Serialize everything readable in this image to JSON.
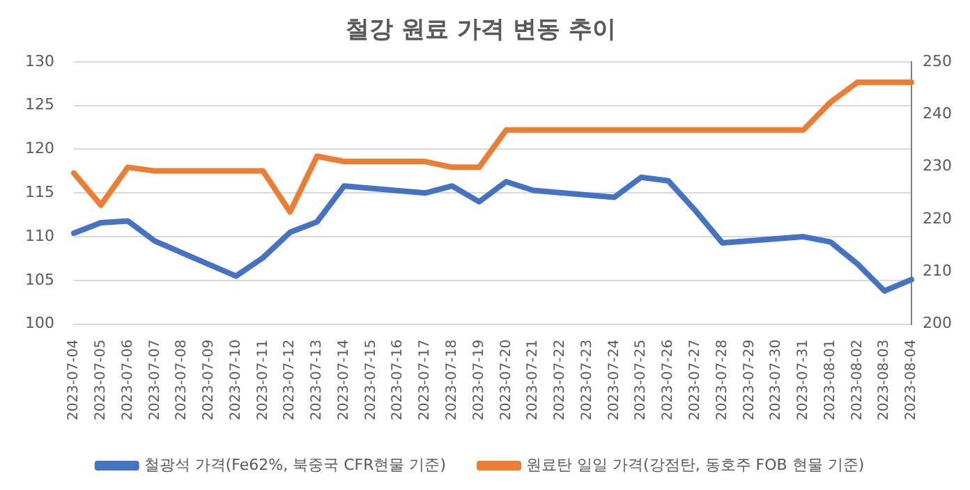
{
  "chart_data": {
    "type": "line",
    "title": "철강 원료 가격 변동 추이",
    "categories": [
      "2023-07-04",
      "2023-07-05",
      "2023-07-06",
      "2023-07-07",
      "2023-07-08",
      "2023-07-09",
      "2023-07-10",
      "2023-07-11",
      "2023-07-12",
      "2023-07-13",
      "2023-07-14",
      "2023-07-15",
      "2023-07-16",
      "2023-07-17",
      "2023-07-18",
      "2023-07-19",
      "2023-07-20",
      "2023-07-21",
      "2023-07-22",
      "2023-07-23",
      "2023-07-24",
      "2023-07-25",
      "2023-07-26",
      "2023-07-27",
      "2023-07-28",
      "2023-07-29",
      "2023-07-30",
      "2023-07-31",
      "2023-08-01",
      "2023-08-02",
      "2023-08-03",
      "2023-08-04"
    ],
    "series": [
      {
        "name": "철광석 가격(Fe62%, 북중국 CFR현물 기준)",
        "color": "#4472c4",
        "values": [
          110.4,
          111.6,
          111.8,
          109.5,
          null,
          null,
          105.5,
          107.6,
          110.5,
          111.7,
          115.8,
          null,
          null,
          115.0,
          115.8,
          114.0,
          116.3,
          115.3,
          null,
          null,
          114.5,
          116.8,
          116.4,
          113.0,
          109.3,
          null,
          null,
          110.0,
          109.4,
          106.9,
          103.8,
          105.1
        ]
      },
      {
        "name": "원료탄 일일 가격(강점탄, 동호주 FOB 현물 기준)",
        "color": "#ed7d31",
        "axis": "y2",
        "values": [
          228.8,
          222.7,
          229.9,
          229.2,
          null,
          null,
          229.2,
          229.2,
          221.4,
          232.0,
          231.0,
          null,
          null,
          231.0,
          229.9,
          229.9,
          237,
          237,
          null,
          null,
          237,
          237,
          237,
          237,
          237,
          null,
          null,
          237,
          242.3,
          246.1,
          246.1,
          246.1
        ]
      }
    ],
    "ylim": [
      100,
      130
    ],
    "yticks": [
      100,
      105,
      110,
      115,
      120,
      125,
      130
    ],
    "y2lim": [
      200,
      250
    ],
    "y2ticks": [
      200,
      210,
      220,
      230,
      240,
      250
    ],
    "grid": "y",
    "legend": "bottom",
    "marker": "none",
    "line_style": "solid"
  }
}
